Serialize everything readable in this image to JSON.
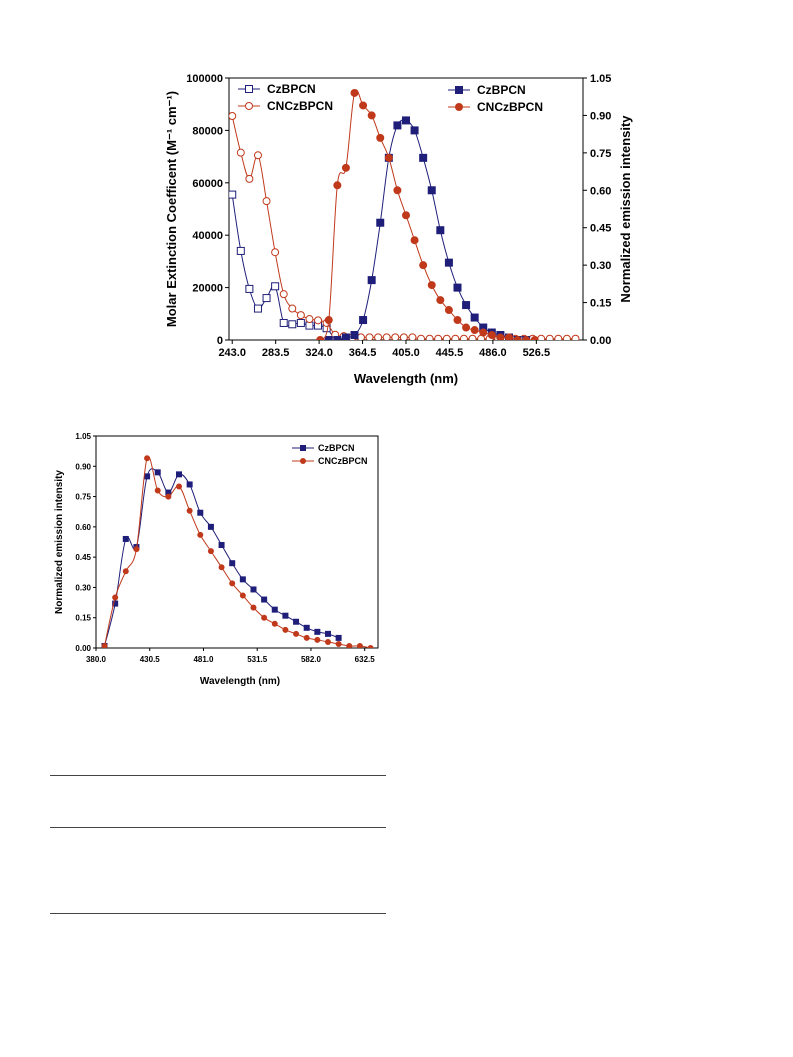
{
  "colors": {
    "blue": "#1f1f7a",
    "red": "#c0391b"
  },
  "chart_data": [
    {
      "type": "line",
      "xlabel": "Wavelength (nm)",
      "ylabel": "Molar Extinction Coefficent (M⁻¹ cm⁻¹)",
      "y2label": "Normalized emission intensity",
      "x_ticks": [
        "243.0",
        "283.5",
        "324.0",
        "364.5",
        "405.0",
        "445.5",
        "486.0",
        "526.5"
      ],
      "y_ticks": [
        "0",
        "20000",
        "40000",
        "60000",
        "80000",
        "100000"
      ],
      "y2_ticks": [
        "0.00",
        "0.15",
        "0.30",
        "0.45",
        "0.60",
        "0.75",
        "0.90",
        "1.05"
      ],
      "xlim": [
        240,
        570
      ],
      "ylim": [
        0,
        100000
      ],
      "y2lim": [
        0,
        1.05
      ],
      "legend_left": [
        "CzBPCN",
        "CNCzBPCN"
      ],
      "legend_right": [
        "CzBPCN",
        "CNCzBPCN"
      ],
      "series": [
        {
          "name": "CzBPCN",
          "axis": "left",
          "marker": "open-square",
          "color": "#1f1f7a",
          "x": [
            243,
            251,
            259,
            267,
            275,
            283,
            291,
            299,
            307,
            315,
            323,
            331,
            339
          ],
          "y": [
            55500,
            34000,
            19500,
            12000,
            16000,
            20500,
            6500,
            6000,
            6500,
            5500,
            5500,
            4500,
            0
          ]
        },
        {
          "name": "CNCzBPCN",
          "axis": "left",
          "marker": "open-circle",
          "color": "#c0391b",
          "x": [
            243,
            251,
            259,
            267,
            275,
            283,
            291,
            299,
            307,
            315,
            323,
            331,
            339,
            347,
            355,
            363,
            371,
            379,
            387,
            395,
            403,
            411,
            419,
            427,
            435,
            443,
            451,
            459,
            467,
            475,
            483,
            491,
            499,
            507,
            515,
            523,
            531,
            539,
            547,
            555,
            563
          ],
          "y": [
            85500,
            71500,
            61500,
            70500,
            53000,
            33500,
            17500,
            12000,
            9500,
            8000,
            7500,
            6500,
            2000,
            1500,
            1000,
            1000,
            1000,
            1000,
            1000,
            1000,
            1000,
            1000,
            500,
            500,
            500,
            500,
            500,
            500,
            500,
            500,
            500,
            500,
            500,
            500,
            500,
            500,
            500,
            500,
            500,
            500,
            500
          ]
        },
        {
          "name": "CzBPCN",
          "axis": "right",
          "marker": "filled-square",
          "color": "#1f1f7a",
          "x": [
            333,
            341,
            349,
            357,
            365,
            373,
            381,
            389,
            397,
            405,
            413,
            421,
            429,
            437,
            445,
            453,
            461,
            469,
            477,
            485,
            493,
            501,
            509,
            517
          ],
          "y": [
            0.0,
            0.0,
            0.01,
            0.02,
            0.08,
            0.24,
            0.47,
            0.73,
            0.86,
            0.88,
            0.84,
            0.73,
            0.6,
            0.44,
            0.31,
            0.21,
            0.14,
            0.09,
            0.05,
            0.03,
            0.02,
            0.01,
            0.0,
            0.0
          ]
        },
        {
          "name": "CNCzBPCN",
          "axis": "right",
          "marker": "filled-circle",
          "color": "#c0391b",
          "x": [
            325,
            333,
            341,
            349,
            357,
            365,
            373,
            381,
            389,
            397,
            405,
            413,
            421,
            429,
            437,
            445,
            453,
            461,
            469,
            477,
            485,
            493,
            501,
            509,
            517,
            525
          ],
          "y": [
            0.0,
            0.08,
            0.62,
            0.69,
            0.99,
            0.94,
            0.9,
            0.81,
            0.73,
            0.6,
            0.5,
            0.4,
            0.3,
            0.22,
            0.16,
            0.12,
            0.08,
            0.05,
            0.04,
            0.03,
            0.02,
            0.01,
            0.01,
            0.0,
            0.0,
            0.0
          ]
        }
      ]
    },
    {
      "type": "line",
      "xlabel": "Wavelength (nm)",
      "ylabel": "Normalized emission intensity",
      "x_ticks": [
        "380.0",
        "430.5",
        "481.0",
        "531.5",
        "582.0",
        "632.5"
      ],
      "y_ticks": [
        "0.00",
        "0.15",
        "0.30",
        "0.45",
        "0.60",
        "0.75",
        "0.90",
        "1.05"
      ],
      "xlim": [
        380,
        645
      ],
      "ylim": [
        0,
        1.05
      ],
      "legend": [
        "CzBPCN",
        "CNCzBPCN"
      ],
      "series": [
        {
          "name": "CzBPCN",
          "marker": "filled-square",
          "color": "#1f1f7a",
          "x": [
            388,
            398,
            408,
            418,
            428,
            438,
            448,
            458,
            468,
            478,
            488,
            498,
            508,
            518,
            528,
            538,
            548,
            558,
            568,
            578,
            588,
            598,
            608
          ],
          "y": [
            0.01,
            0.22,
            0.54,
            0.5,
            0.85,
            0.87,
            0.77,
            0.86,
            0.81,
            0.67,
            0.6,
            0.51,
            0.42,
            0.34,
            0.29,
            0.24,
            0.19,
            0.16,
            0.13,
            0.1,
            0.08,
            0.07,
            0.05
          ]
        },
        {
          "name": "CNCzBPCN",
          "marker": "filled-circle",
          "color": "#c0391b",
          "x": [
            388,
            398,
            408,
            418,
            428,
            438,
            448,
            458,
            468,
            478,
            488,
            498,
            508,
            518,
            528,
            538,
            548,
            558,
            568,
            578,
            588,
            598,
            608,
            618,
            628,
            638
          ],
          "y": [
            0.01,
            0.25,
            0.38,
            0.49,
            0.94,
            0.78,
            0.75,
            0.8,
            0.68,
            0.56,
            0.48,
            0.4,
            0.32,
            0.26,
            0.2,
            0.15,
            0.12,
            0.09,
            0.07,
            0.05,
            0.04,
            0.03,
            0.02,
            0.01,
            0.01,
            0.0
          ]
        }
      ]
    }
  ]
}
